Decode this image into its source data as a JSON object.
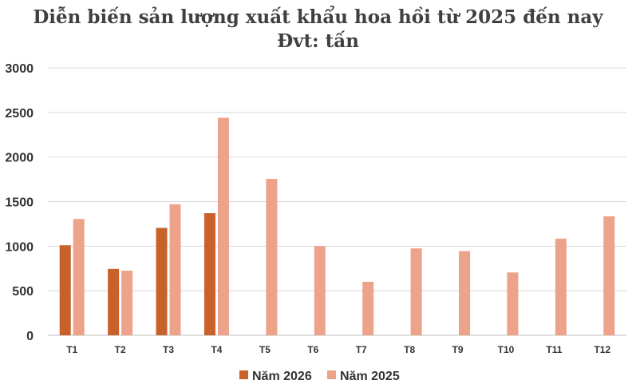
{
  "chart_data": {
    "type": "bar",
    "title": "Diễn biến sản lượng xuất khẩu hoa hồi từ 2025 đến nay",
    "subtitle": "Đvt: tấn",
    "categories": [
      "T1",
      "T2",
      "T3",
      "T4",
      "T5",
      "T6",
      "T7",
      "T8",
      "T9",
      "T10",
      "T11",
      "T12"
    ],
    "series": [
      {
        "name": "Năm 2026",
        "color": "#c8622a",
        "values": [
          1010,
          745,
          1205,
          1370,
          null,
          null,
          null,
          null,
          null,
          null,
          null,
          null
        ]
      },
      {
        "name": "Năm 2025",
        "color": "#eda28a",
        "values": [
          1305,
          725,
          1470,
          2440,
          1755,
          1000,
          600,
          975,
          945,
          705,
          1085,
          1335
        ]
      }
    ],
    "yticks": [
      "0",
      "500",
      "1000",
      "1500",
      "2000",
      "2500",
      "3000"
    ],
    "ylim": [
      0,
      3000
    ],
    "grid": true,
    "legend": "bottom"
  }
}
